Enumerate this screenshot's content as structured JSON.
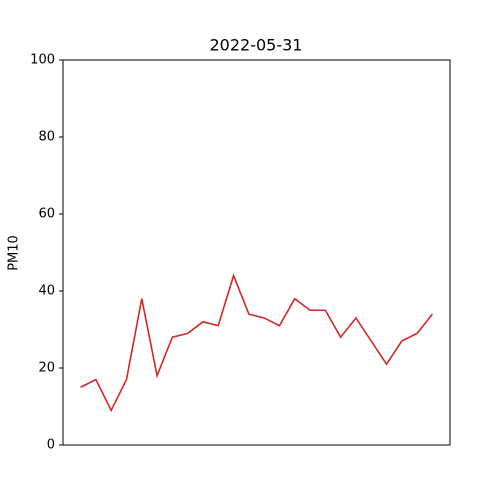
{
  "chart_data": {
    "type": "line",
    "title": "2022-05-31",
    "y_label": "PM10",
    "categories": [
      null,
      null,
      null,
      null,
      null,
      null,
      null,
      null,
      null,
      null,
      null,
      null,
      null,
      null,
      null,
      null,
      null,
      null,
      null,
      null,
      null,
      null,
      null,
      null
    ],
    "series": [
      {
        "name": "PM10",
        "color": "#d62728",
        "values": [
          15,
          17,
          9,
          17,
          38,
          18,
          28,
          29,
          32,
          31,
          44,
          34,
          33,
          31,
          38,
          35,
          35,
          28,
          33,
          27,
          21,
          27,
          29,
          34
        ]
      }
    ],
    "ylim": [
      0,
      100
    ],
    "yticks": [
      0,
      20,
      40,
      60,
      80,
      100
    ],
    "grid": false
  }
}
